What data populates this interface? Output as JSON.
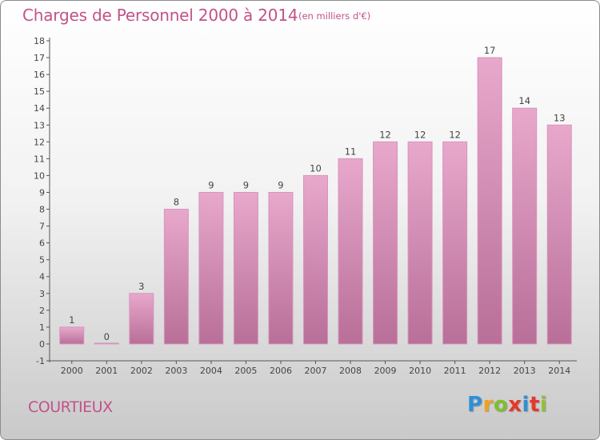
{
  "header": {
    "title": "Charges de Personnel 2000 à 2014",
    "subtitle": "(en milliers d'€)"
  },
  "footer": {
    "commune": "COURTIEUX",
    "logo": [
      "P",
      "r",
      "o",
      "x",
      "i",
      "t",
      "i"
    ]
  },
  "colors": {
    "bar_top": "#e8a8cc",
    "bar_bottom": "#b86f98",
    "bar_stroke": "#d894bb",
    "title": "#c2528a"
  },
  "chart_data": {
    "type": "bar",
    "title": "Charges de Personnel 2000 à 2014",
    "subtitle": "(en milliers d'€)",
    "categories": [
      "2000",
      "2001",
      "2002",
      "2003",
      "2004",
      "2005",
      "2006",
      "2007",
      "2008",
      "2009",
      "2010",
      "2011",
      "2012",
      "2013",
      "2014"
    ],
    "values": [
      1,
      0,
      3,
      8,
      9,
      9,
      9,
      10,
      11,
      12,
      12,
      12,
      17,
      14,
      13
    ],
    "ylim": [
      -1,
      18
    ],
    "yticks": [
      -1,
      0,
      1,
      2,
      3,
      4,
      5,
      6,
      7,
      8,
      9,
      10,
      11,
      12,
      13,
      14,
      15,
      16,
      17,
      18
    ],
    "grid": false,
    "legend": "none"
  }
}
